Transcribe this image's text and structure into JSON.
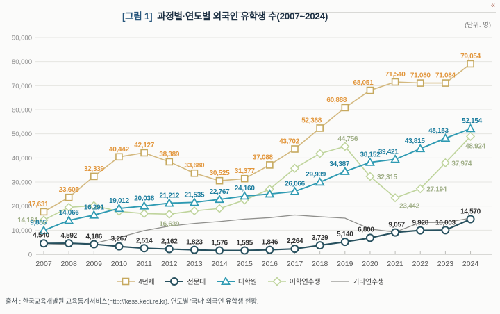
{
  "header": {
    "title_tag": "[그림 1]",
    "title_text": "과정별·연도별 외국인 유학생 수(2007~2024)",
    "units_label": "(단위: 명)"
  },
  "icons": {
    "corner_glyph": "«"
  },
  "footer": {
    "source_note": "출처 : 한국교육개발원 교육통계서비스(http://kess.kedi.re.kr). 연도별 '국내' 외국인 유학생 현황."
  },
  "chart_data": {
    "type": "line",
    "title": "과정별·연도별 외국인 유학생 수(2007~2024)",
    "xlabel": "",
    "ylabel": "",
    "x": [
      2007,
      2008,
      2009,
      2010,
      2011,
      2012,
      2013,
      2014,
      2015,
      2016,
      2017,
      2018,
      2019,
      2020,
      2021,
      2022,
      2023,
      2024
    ],
    "ylim": [
      0,
      90000
    ],
    "yticks": [
      "0",
      "10,000",
      "20,000",
      "30,000",
      "40,000",
      "50,000",
      "60,000",
      "70,000",
      "80,000",
      "90,000"
    ],
    "grid": true,
    "legend_position": "bottom",
    "legend_order": [
      "4년제",
      "전문대",
      "대학원",
      "어학연수생",
      "기타연수생"
    ],
    "series": [
      {
        "key": "other-training",
        "name": "기타연수생",
        "marker": "none",
        "line_color": "#8f8f8c",
        "line_width": 1.3,
        "label_color": "#8f8f8c",
        "values": [
          3800,
          4300,
          4500,
          7000,
          9800,
          11700,
          12800,
          13600,
          14600,
          15200,
          16300,
          15600,
          15000,
          10500,
          9200,
          13200,
          13200,
          15000
        ],
        "labels": null,
        "label_offsets": {}
      },
      {
        "key": "language-training",
        "name": "어학연수생",
        "marker": "diamond",
        "line_color": "#bfd49c",
        "line_width": 1.6,
        "label_color": "#9fae86",
        "values": [
          14184,
          19500,
          20200,
          17800,
          16900,
          16639,
          18000,
          19000,
          22500,
          27000,
          35700,
          41800,
          44756,
          32315,
          23442,
          27194,
          37974,
          48924
        ],
        "labels": [
          "14,184",
          null,
          null,
          null,
          null,
          "16,639",
          null,
          null,
          null,
          null,
          null,
          null,
          "44,756",
          "32,315",
          "23,442",
          "27,194",
          "37,974",
          "48,924"
        ],
        "label_offsets": {
          "0": [
            -9,
            3,
            "end"
          ],
          "5": [
            0,
            17
          ],
          "12": [
            4,
            -8
          ],
          "13": [
            10,
            4,
            "start"
          ],
          "14": [
            6,
            15,
            "start"
          ],
          "15": [
            9,
            4,
            "start"
          ],
          "16": [
            9,
            4,
            "start"
          ],
          "17": [
            7,
            17
          ]
        }
      },
      {
        "key": "bachelor",
        "name": "4년제",
        "marker": "square",
        "line_color": "#d3b87e",
        "line_width": 1.6,
        "label_color": "#e2963c",
        "values": [
          17631,
          23605,
          32339,
          40442,
          42127,
          38389,
          33680,
          30525,
          31377,
          37088,
          43702,
          52368,
          60888,
          68051,
          71540,
          71080,
          71084,
          79054
        ],
        "labels": [
          "17,631",
          "23,605",
          "32,339",
          "40,442",
          "42,127",
          "38,389",
          "33,680",
          "30,525",
          "31,377",
          "37,088",
          "43,702",
          "52,368",
          "60,888",
          "68,051",
          "71,540",
          "71,080",
          "71,084",
          "79,054"
        ],
        "label_offsets": {
          "0": [
            -8,
            -8
          ],
          "9": [
            -10,
            -8
          ],
          "10": [
            -8,
            -8
          ],
          "11": [
            -12,
            -8
          ],
          "12": [
            -12,
            -8
          ],
          "13": [
            -10,
            -8
          ]
        }
      },
      {
        "key": "graduate",
        "name": "대학원",
        "marker": "triangle",
        "line_color": "#2e9ab2",
        "line_width": 1.9,
        "label_color": "#1c7d9e",
        "values": [
          9885,
          14066,
          16291,
          19012,
          20038,
          21212,
          21535,
          22767,
          24160,
          25000,
          26066,
          29939,
          34387,
          38152,
          39421,
          43815,
          48153,
          52154
        ],
        "labels": [
          "9,885",
          "14,066",
          "16,291",
          "19,012",
          "20,038",
          "21,212",
          "21,535",
          "22,767",
          "24,160",
          null,
          "26,066",
          "29,939",
          "34,387",
          "38,152",
          "39,421",
          "43,815",
          "48,153",
          "52,154"
        ],
        "label_offsets": {
          "0": [
            -8,
            -8
          ],
          "11": [
            -6,
            -8
          ],
          "12": [
            -8,
            -8
          ],
          "14": [
            -10,
            -8
          ],
          "15": [
            -8,
            -8
          ],
          "16": [
            -10,
            -8
          ],
          "17": [
            2,
            -8
          ]
        }
      },
      {
        "key": "junior-college",
        "name": "전문대",
        "marker": "circle",
        "line_color": "#27505e",
        "line_width": 2.1,
        "label_color": "#333333",
        "values": [
          4540,
          4592,
          4186,
          3267,
          2514,
          2162,
          1823,
          1576,
          1595,
          1846,
          2264,
          3729,
          5140,
          6800,
          9057,
          9928,
          10003,
          14570
        ],
        "labels": [
          "4,540",
          "4,592",
          "4,186",
          "3,267",
          "2,514",
          "2,162",
          "1,823",
          "1,576",
          "1,595",
          "1,846",
          "2,264",
          "3,729",
          "5,140",
          "6,800",
          "9,057",
          "9,928",
          "10,003",
          "14,570"
        ],
        "label_offsets": {
          "0": [
            -4,
            -9
          ],
          "13": [
            -6,
            -9
          ],
          "14": [
            2,
            -8
          ]
        }
      }
    ]
  }
}
